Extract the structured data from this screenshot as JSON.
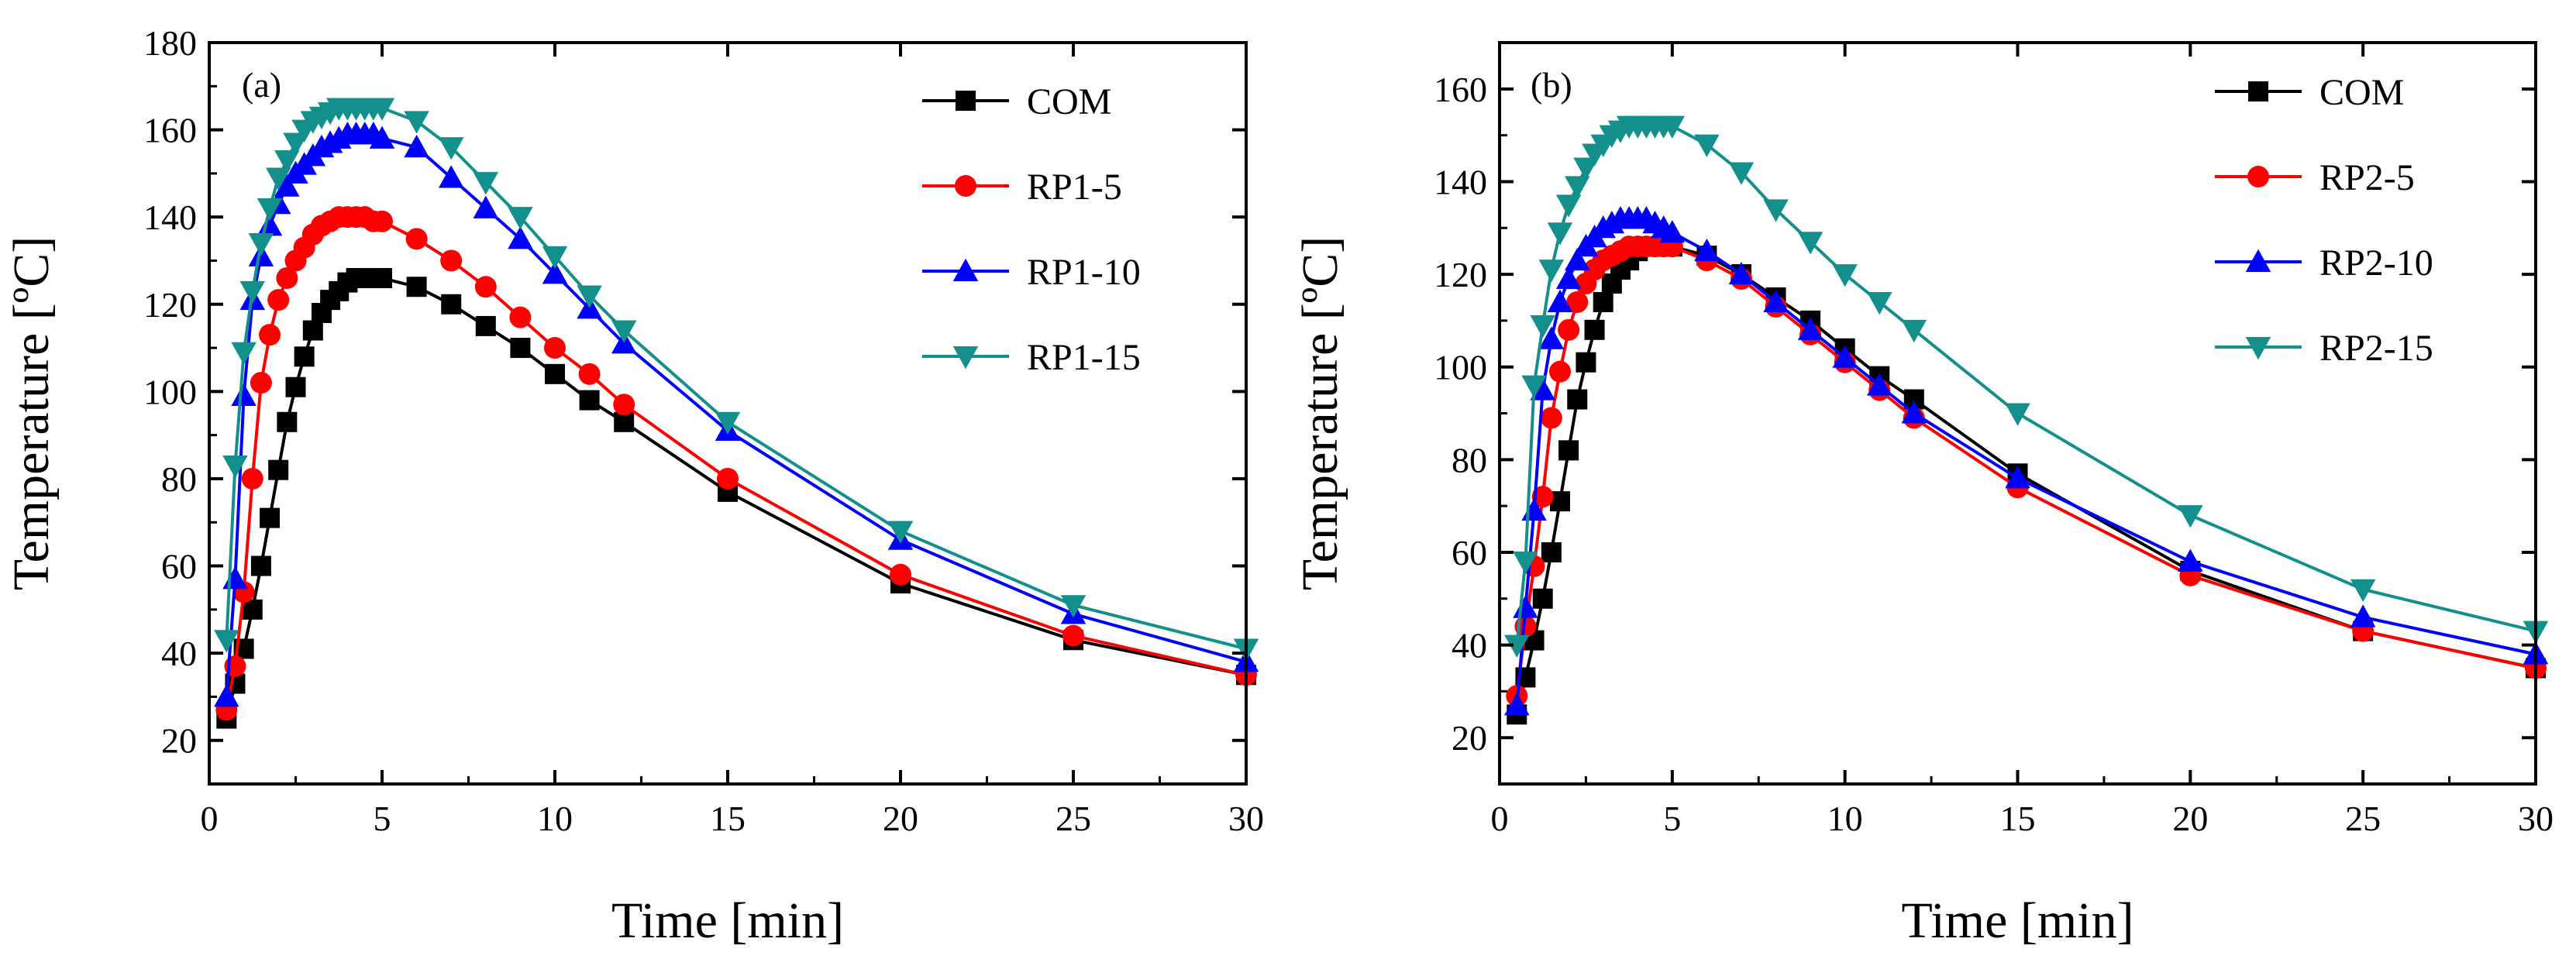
{
  "chart_data": [
    {
      "type": "line",
      "panel_label": "(a)",
      "xlabel": "Time [min]",
      "ylabel": "Temperature [ºC]",
      "xlim": [
        0,
        30
      ],
      "ylim": [
        10,
        180
      ],
      "xticks": [
        0,
        5,
        10,
        15,
        20,
        25,
        30
      ],
      "yticks": [
        20,
        40,
        60,
        80,
        100,
        120,
        140,
        160,
        180
      ],
      "grid": false,
      "legend_position": "top-right",
      "series": [
        {
          "name": "COM",
          "color": "#000000",
          "marker": "square",
          "x": [
            0.5,
            0.75,
            1,
            1.25,
            1.5,
            1.75,
            2,
            2.25,
            2.5,
            2.75,
            3,
            3.25,
            3.5,
            3.75,
            4,
            4.25,
            4.5,
            4.75,
            5,
            6,
            7,
            8,
            9,
            10,
            11,
            12,
            15,
            20,
            25,
            30
          ],
          "y": [
            25,
            33,
            41,
            50,
            60,
            71,
            82,
            93,
            101,
            108,
            114,
            118,
            121,
            123,
            125,
            126,
            126,
            126,
            126,
            124,
            120,
            115,
            110,
            104,
            98,
            93,
            77,
            56,
            43,
            35
          ]
        },
        {
          "name": "RP1-5",
          "color": "#ff0000",
          "marker": "circle",
          "x": [
            0.5,
            0.75,
            1,
            1.25,
            1.5,
            1.75,
            2,
            2.25,
            2.5,
            2.75,
            3,
            3.25,
            3.5,
            3.75,
            4,
            4.25,
            4.5,
            4.75,
            5,
            6,
            7,
            8,
            9,
            10,
            11,
            12,
            15,
            20,
            25,
            30
          ],
          "y": [
            27,
            37,
            54,
            80,
            102,
            113,
            121,
            126,
            130,
            133,
            136,
            138,
            139,
            140,
            140,
            140,
            140,
            139,
            139,
            135,
            130,
            124,
            117,
            110,
            104,
            97,
            80,
            58,
            44,
            35
          ]
        },
        {
          "name": "RP1-10",
          "color": "#0000ff",
          "marker": "triangle-up",
          "x": [
            0.5,
            0.75,
            1,
            1.25,
            1.5,
            1.75,
            2,
            2.25,
            2.5,
            2.75,
            3,
            3.25,
            3.5,
            3.75,
            4,
            4.25,
            4.5,
            4.75,
            5,
            6,
            7,
            8,
            9,
            10,
            11,
            12,
            15,
            20,
            25,
            30
          ],
          "y": [
            30,
            57,
            99,
            121,
            131,
            138,
            143,
            147,
            150,
            152,
            154,
            156,
            157,
            158,
            159,
            159,
            159,
            159,
            158,
            156,
            149,
            142,
            135,
            127,
            119,
            111,
            91,
            66,
            49,
            38
          ]
        },
        {
          "name": "RP1-15",
          "color": "#13908c",
          "marker": "triangle-down",
          "x": [
            0.5,
            0.75,
            1,
            1.25,
            1.5,
            1.75,
            2,
            2.25,
            2.5,
            2.75,
            3,
            3.25,
            3.5,
            3.75,
            4,
            4.25,
            4.5,
            4.75,
            5,
            6,
            7,
            8,
            9,
            10,
            11,
            12,
            15,
            20,
            25,
            30
          ],
          "y": [
            43,
            83,
            109,
            123,
            134,
            142,
            149,
            153,
            157,
            160,
            162,
            163,
            164,
            165,
            165,
            165,
            165,
            165,
            165,
            162,
            156,
            148,
            140,
            131,
            122,
            114,
            93,
            68,
            51,
            41
          ]
        }
      ]
    },
    {
      "type": "line",
      "panel_label": "(b)",
      "xlabel": "Time [min]",
      "ylabel": "Temperature [ºC]",
      "xlim": [
        0,
        30
      ],
      "ylim": [
        10,
        170
      ],
      "xticks": [
        0,
        5,
        10,
        15,
        20,
        25,
        30
      ],
      "yticks": [
        20,
        40,
        60,
        80,
        100,
        120,
        140,
        160
      ],
      "grid": false,
      "legend_position": "top-right",
      "series": [
        {
          "name": "COM",
          "color": "#000000",
          "marker": "square",
          "x": [
            0.5,
            0.75,
            1,
            1.25,
            1.5,
            1.75,
            2,
            2.25,
            2.5,
            2.75,
            3,
            3.25,
            3.5,
            3.75,
            4,
            4.25,
            4.5,
            4.75,
            5,
            6,
            7,
            8,
            9,
            10,
            11,
            12,
            15,
            20,
            25,
            30
          ],
          "y": [
            25,
            33,
            41,
            50,
            60,
            71,
            82,
            93,
            101,
            108,
            114,
            118,
            121,
            123,
            125,
            126,
            126,
            126,
            126,
            124,
            120,
            115,
            110,
            104,
            98,
            93,
            77,
            56,
            43,
            35
          ]
        },
        {
          "name": "RP2-5",
          "color": "#ff0000",
          "marker": "circle",
          "x": [
            0.5,
            0.75,
            1,
            1.25,
            1.5,
            1.75,
            2,
            2.25,
            2.5,
            2.75,
            3,
            3.25,
            3.5,
            3.75,
            4,
            4.25,
            4.5,
            4.75,
            5,
            6,
            7,
            8,
            9,
            10,
            11,
            12,
            15,
            20,
            25,
            30
          ],
          "y": [
            29,
            44,
            57,
            72,
            89,
            99,
            108,
            114,
            118,
            121,
            123,
            124,
            125,
            126,
            126,
            126,
            126,
            126,
            126,
            123,
            119,
            113,
            107,
            101,
            95,
            89,
            74,
            55,
            43,
            35
          ]
        },
        {
          "name": "RP2-10",
          "color": "#0000ff",
          "marker": "triangle-up",
          "x": [
            0.5,
            0.75,
            1,
            1.25,
            1.5,
            1.75,
            2,
            2.25,
            2.5,
            2.75,
            3,
            3.25,
            3.5,
            3.75,
            4,
            4.25,
            4.5,
            4.75,
            5,
            6,
            7,
            8,
            9,
            10,
            11,
            12,
            15,
            20,
            25,
            30
          ],
          "y": [
            27,
            48,
            69,
            95,
            106,
            114,
            119,
            123,
            126,
            128,
            130,
            131,
            132,
            132,
            132,
            132,
            131,
            130,
            129,
            125,
            120,
            114,
            108,
            102,
            96,
            90,
            76,
            58,
            46,
            38
          ]
        },
        {
          "name": "RP2-15",
          "color": "#13908c",
          "marker": "triangle-down",
          "x": [
            0.5,
            0.75,
            1,
            1.25,
            1.5,
            1.75,
            2,
            2.25,
            2.5,
            2.75,
            3,
            3.25,
            3.5,
            3.75,
            4,
            4.25,
            4.5,
            4.75,
            5,
            6,
            7,
            8,
            9,
            10,
            11,
            12,
            15,
            20,
            25,
            30
          ],
          "y": [
            40,
            58,
            96,
            109,
            121,
            129,
            135,
            139,
            143,
            146,
            148,
            150,
            151,
            152,
            152,
            152,
            152,
            152,
            152,
            148,
            142,
            134,
            127,
            120,
            114,
            108,
            90,
            68,
            52,
            43
          ]
        }
      ]
    }
  ]
}
